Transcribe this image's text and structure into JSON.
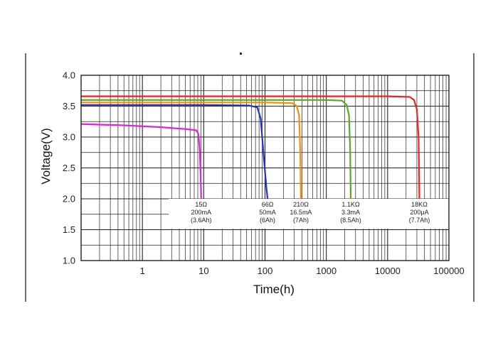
{
  "chart_data": {
    "type": "line",
    "xlabel": "Time(h)",
    "ylabel": "Voltage(V)",
    "x_scale": "log",
    "xlim": [
      0.1,
      100000
    ],
    "ylim": [
      1.0,
      4.0
    ],
    "x_tick_labels": [
      "1",
      "10",
      "100",
      "1000",
      "10000",
      "100000"
    ],
    "y_tick_labels": [
      "1.0",
      "1.5",
      "2.0",
      "2.5",
      "3.0",
      "3.5",
      "4.0"
    ],
    "grid": true,
    "series": [
      {
        "color": "#e020e0",
        "points": [
          [
            0.1,
            3.21
          ],
          [
            0.5,
            3.19
          ],
          [
            2,
            3.16
          ],
          [
            5,
            3.13
          ],
          [
            7.5,
            3.11
          ],
          [
            8.2,
            3.05
          ],
          [
            8.6,
            2.8
          ],
          [
            8.9,
            2.4
          ],
          [
            9.1,
            2.0
          ]
        ]
      },
      {
        "color": "#2233cc",
        "points": [
          [
            0.1,
            3.52
          ],
          [
            1,
            3.52
          ],
          [
            10,
            3.52
          ],
          [
            55,
            3.51
          ],
          [
            75,
            3.48
          ],
          [
            85,
            3.3
          ],
          [
            95,
            2.7
          ],
          [
            105,
            2.2
          ],
          [
            110,
            2.0
          ]
        ]
      },
      {
        "color": "#ff8c00",
        "points": [
          [
            0.1,
            3.56
          ],
          [
            1,
            3.56
          ],
          [
            10,
            3.56
          ],
          [
            100,
            3.56
          ],
          [
            280,
            3.55
          ],
          [
            330,
            3.5
          ],
          [
            360,
            3.35
          ],
          [
            375,
            2.8
          ],
          [
            385,
            2.0
          ]
        ]
      },
      {
        "color": "#55aa22",
        "points": [
          [
            0.1,
            3.6
          ],
          [
            1,
            3.6
          ],
          [
            10,
            3.6
          ],
          [
            100,
            3.6
          ],
          [
            1000,
            3.6
          ],
          [
            1800,
            3.59
          ],
          [
            2150,
            3.52
          ],
          [
            2350,
            3.35
          ],
          [
            2450,
            2.8
          ],
          [
            2500,
            2.0
          ]
        ]
      },
      {
        "color": "#ee2222",
        "points": [
          [
            0.1,
            3.66
          ],
          [
            1,
            3.66
          ],
          [
            100,
            3.66
          ],
          [
            10000,
            3.66
          ],
          [
            23000,
            3.65
          ],
          [
            27000,
            3.6
          ],
          [
            30000,
            3.45
          ],
          [
            32000,
            3.0
          ],
          [
            33000,
            2.0
          ]
        ]
      }
    ],
    "annotations": [
      {
        "x": 9.1,
        "lines": [
          "15Ω",
          "200mA",
          "(3.6Ah)"
        ]
      },
      {
        "x": 110,
        "lines": [
          "66Ω",
          "50mA",
          "(6Ah)"
        ]
      },
      {
        "x": 385,
        "lines": [
          "210Ω",
          "16.5mA",
          "(7Ah)"
        ]
      },
      {
        "x": 2500,
        "lines": [
          "1.1KΩ",
          "3.3mA",
          "(8.5Ah)"
        ]
      },
      {
        "x": 33000,
        "lines": [
          "18KΩ",
          "200μA",
          "(7.7Ah)"
        ]
      }
    ],
    "axis_color": "#111111",
    "grid_color": "#222222",
    "annotation_box_color": "#ffffff"
  }
}
